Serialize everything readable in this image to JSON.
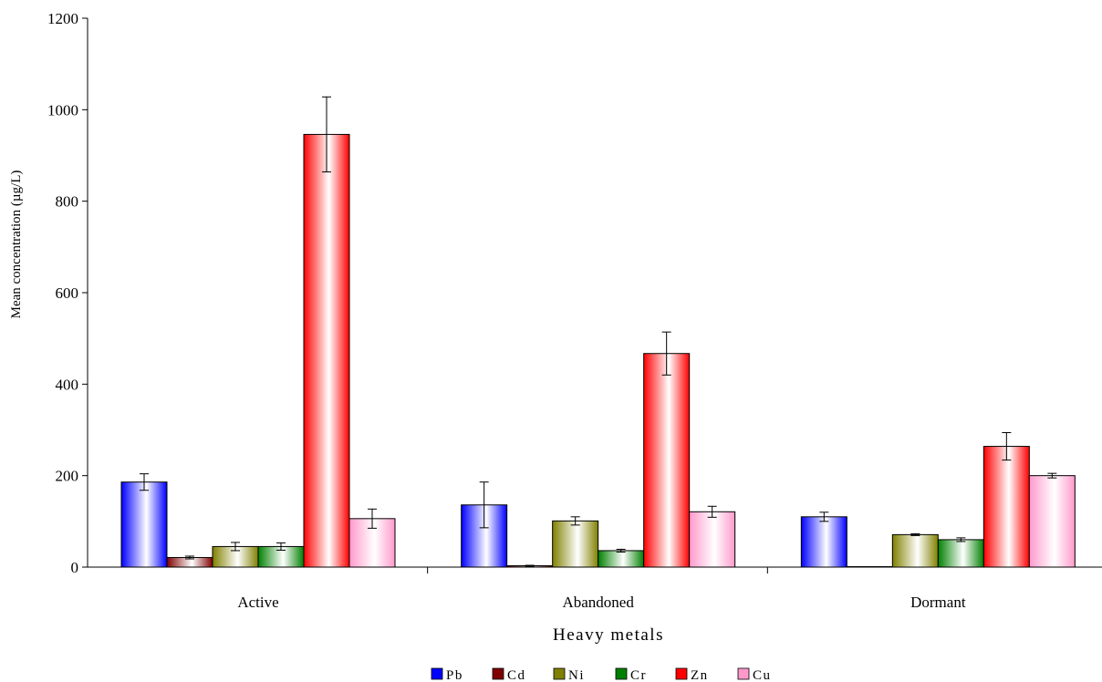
{
  "chart_data": {
    "type": "bar",
    "xlabel": "Heavy metals",
    "ylabel": "Mean concentration (µg/L)",
    "ylim": [
      0,
      1200
    ],
    "yticks": [
      0,
      200,
      400,
      600,
      800,
      1000,
      1200
    ],
    "grid": false,
    "legend_position": "bottom",
    "categories": [
      "Active",
      "Abandoned",
      "Dormant"
    ],
    "series": [
      {
        "name": "Pb",
        "color": "#0000ff",
        "values": [
          186,
          136,
          110
        ],
        "errors": [
          18,
          50,
          10
        ]
      },
      {
        "name": "Cd",
        "color": "#800000",
        "values": [
          21,
          3,
          0
        ],
        "errors": [
          3,
          1,
          0
        ]
      },
      {
        "name": "Ni",
        "color": "#808000",
        "values": [
          45,
          101,
          71
        ],
        "errors": [
          9,
          9,
          2
        ]
      },
      {
        "name": "Cr",
        "color": "#008000",
        "values": [
          45,
          36,
          60
        ],
        "errors": [
          8,
          3,
          4
        ]
      },
      {
        "name": "Zn",
        "color": "#ff0000",
        "values": [
          946,
          467,
          264
        ],
        "errors": [
          82,
          47,
          30
        ]
      },
      {
        "name": "Cu",
        "color": "#ff99cc",
        "values": [
          106,
          121,
          200
        ],
        "errors": [
          21,
          12,
          5
        ]
      }
    ]
  }
}
